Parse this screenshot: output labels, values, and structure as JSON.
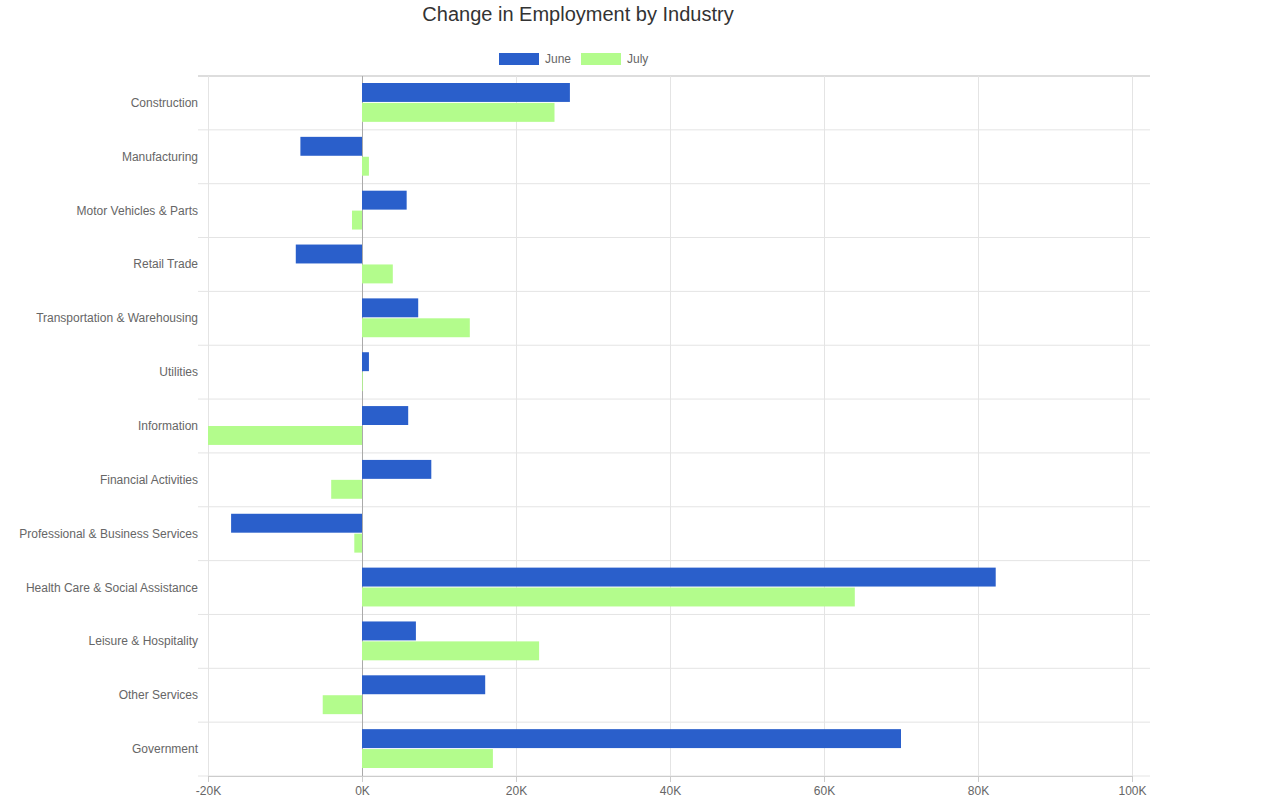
{
  "chart_data": {
    "type": "bar",
    "title": "Change in Employment by Industry",
    "orientation": "horizontal",
    "categories": [
      "Construction",
      "Manufacturing",
      "Motor Vehicles & Parts",
      "Retail Trade",
      "Transportation & Warehousing",
      "Utilities",
      "Information",
      "Financial Activities",
      "Professional & Business Services",
      "Health Care & Social Assistance",
      "Leisure & Hospitality",
      "Other Services",
      "Government"
    ],
    "series": [
      {
        "name": "June",
        "color": "#2a5fcb",
        "values": [
          27000,
          -8000,
          5800,
          -8600,
          7300,
          900,
          6000,
          9000,
          -17000,
          82300,
          7000,
          16000,
          70000
        ]
      },
      {
        "name": "July",
        "color": "#b3fc8c",
        "values": [
          25000,
          900,
          -1300,
          4000,
          14000,
          100,
          -20000,
          -4000,
          -1000,
          64000,
          23000,
          -5100,
          17000
        ]
      }
    ],
    "xlim": [
      -20000,
      100000
    ],
    "xticks": [
      {
        "value": -20000,
        "label": "-20K"
      },
      {
        "value": 0,
        "label": "0K"
      },
      {
        "value": 20000,
        "label": "20K"
      },
      {
        "value": 40000,
        "label": "40K"
      },
      {
        "value": 60000,
        "label": "60K"
      },
      {
        "value": 80000,
        "label": "80K"
      },
      {
        "value": 100000,
        "label": "100K"
      }
    ],
    "grid": true,
    "legend": "top"
  }
}
